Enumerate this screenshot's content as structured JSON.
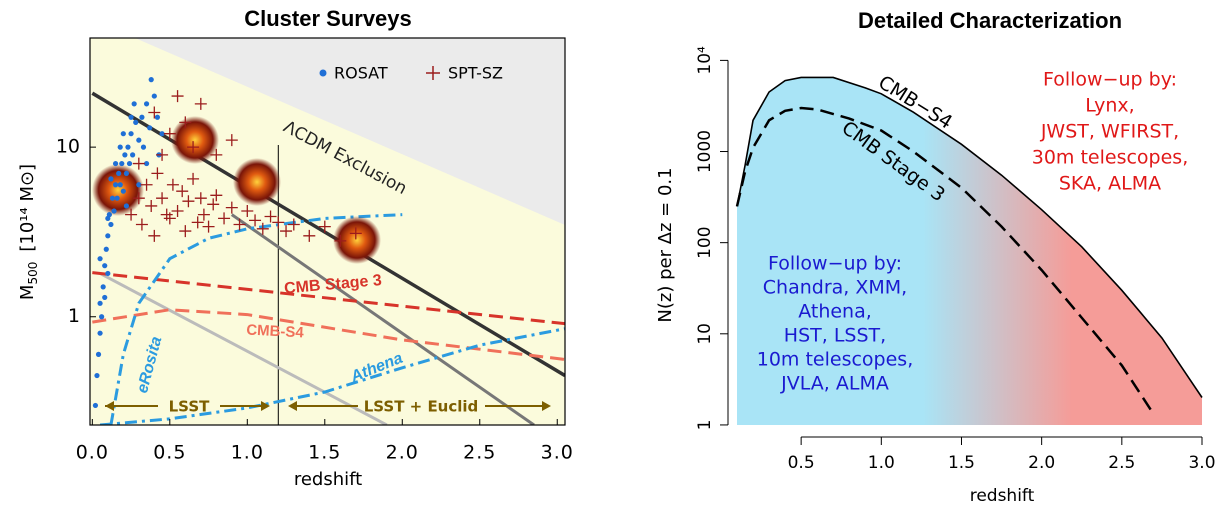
{
  "chart_data": [
    {
      "type": "scatter",
      "title": "Cluster Surveys",
      "x_label": "redshift",
      "y_label": "M",
      "y_label_subscript": "500",
      "y_label_unit": "[10¹⁴ M⊙]",
      "xlim": [
        -0.015,
        3.05
      ],
      "ylim": [
        0.23,
        44
      ],
      "log_y": true,
      "xticks": [
        {
          "value": 0,
          "label": "0.0"
        },
        0.5,
        {
          "value": 1,
          "label": "1.0"
        },
        1.5,
        {
          "value": 2,
          "label": "2.0"
        },
        2.5,
        {
          "value": 3,
          "label": "3.0"
        }
      ],
      "yticks": [
        1,
        10
      ],
      "series": [
        {
          "name": "ROSAT",
          "color": "#1f6fd6",
          "marker": "dot",
          "x": [
            0.02,
            0.03,
            0.04,
            0.05,
            0.05,
            0.06,
            0.07,
            0.08,
            0.08,
            0.09,
            0.1,
            0.1,
            0.11,
            0.12,
            0.13,
            0.14,
            0.15,
            0.16,
            0.17,
            0.18,
            0.19,
            0.2,
            0.21,
            0.22,
            0.23,
            0.24,
            0.25,
            0.26,
            0.28,
            0.3,
            0.32,
            0.33,
            0.35,
            0.37,
            0.4,
            0.42,
            0.45,
            0.05,
            0.1,
            0.15,
            0.2,
            0.25,
            0.3,
            0.12,
            0.18,
            0.22,
            0.27,
            0.35,
            0.38,
            0.43
          ],
          "values": [
            0.3,
            0.45,
            0.6,
            0.8,
            1.2,
            1.0,
            1.5,
            2,
            1.3,
            2.5,
            3,
            1.8,
            4,
            3.5,
            5,
            4.2,
            6,
            5,
            7,
            6,
            8,
            5.5,
            9,
            7,
            10,
            8,
            12,
            9,
            14,
            11,
            15,
            10,
            18,
            13,
            20,
            15,
            12,
            2.2,
            3.8,
            8,
            12,
            15,
            6,
            6.5,
            10,
            4.5,
            18,
            8,
            25,
            9
          ]
        },
        {
          "name": "SPT-SZ",
          "color": "#9b1c1c",
          "marker": "plus",
          "x": [
            0.25,
            0.3,
            0.32,
            0.35,
            0.38,
            0.4,
            0.42,
            0.45,
            0.48,
            0.5,
            0.52,
            0.55,
            0.58,
            0.6,
            0.62,
            0.65,
            0.68,
            0.7,
            0.72,
            0.75,
            0.78,
            0.8,
            0.85,
            0.9,
            0.95,
            1.0,
            1.05,
            1.1,
            1.15,
            1.2,
            1.25,
            1.3,
            1.4,
            1.5,
            1.6,
            1.7,
            0.4,
            0.5,
            0.6,
            0.7,
            0.8,
            0.9,
            0.55,
            0.65,
            0.3,
            0.45
          ],
          "values": [
            4,
            5,
            3.5,
            6,
            4.5,
            3,
            7,
            5,
            4,
            3.8,
            6,
            4.2,
            5.5,
            3.2,
            4.8,
            6.5,
            3.6,
            5,
            4,
            3.4,
            4.6,
            5.2,
            3.8,
            4.4,
            3.5,
            4.2,
            3.7,
            3.3,
            3.9,
            3.6,
            3.2,
            3.5,
            3,
            3.4,
            2.8,
            3.1,
            16,
            12,
            14,
            18,
            9,
            11,
            20,
            10,
            8,
            9
          ]
        }
      ],
      "curves": [
        {
          "color": "#333333",
          "dash": "solid",
          "x": [
            0,
            3.05
          ],
          "values": [
            20.8,
            0.45
          ]
        },
        {
          "color": "#777777",
          "dash": "solid",
          "x": [
            0.9,
            2.85
          ],
          "values": [
            4,
            0.23
          ]
        },
        {
          "color": "#bbbbbb",
          "dash": "solid",
          "x": [
            0.05,
            1.9
          ],
          "values": [
            1.8,
            0.23
          ]
        },
        {
          "label": "CMB Stage 3",
          "color": "#d7342a",
          "dash": "dashed",
          "x": [
            0,
            3.05
          ],
          "values": [
            1.82,
            0.91
          ]
        },
        {
          "label": "CMB-S4",
          "color": "#f0705a",
          "dash": "dashed",
          "x": [
            0,
            0.5,
            1.0,
            2.0,
            3.05
          ],
          "values": [
            0.93,
            1.1,
            1.03,
            0.73,
            0.56
          ]
        },
        {
          "label": "eRosita",
          "color": "#2b9be0",
          "dash": "dashdot",
          "x": [
            0.12,
            0.2,
            0.3,
            0.5,
            0.75,
            1.0,
            1.5,
            2.0
          ],
          "values": [
            0.23,
            0.6,
            1.2,
            2.2,
            2.9,
            3.3,
            3.8,
            4.0
          ]
        },
        {
          "label": "Athena",
          "color": "#2b9be0",
          "dash": "dashdot",
          "x": [
            0.05,
            0.5,
            1.0,
            1.5,
            2.0,
            2.5,
            3.05
          ],
          "values": [
            0.23,
            0.25,
            0.29,
            0.36,
            0.5,
            0.68,
            0.85
          ]
        }
      ],
      "divider_x": 1.2,
      "annotations": [
        {
          "text": "ΛCDM Exclusion"
        },
        {
          "text": "LSST"
        },
        {
          "text": "LSST + Euclid"
        }
      ]
    },
    {
      "type": "line",
      "title": "Detailed Characterization",
      "x_label": "redshift",
      "y_label": "N(z) per Δz = 0.1",
      "xlim": [
        0.1,
        3.0
      ],
      "ylim": [
        0.88,
        13000
      ],
      "log_y": true,
      "xticks": [
        0.5,
        {
          "value": 1,
          "label": "1.0"
        },
        1.5,
        {
          "value": 2,
          "label": "2.0"
        },
        2.5,
        {
          "value": 3,
          "label": "3.0"
        }
      ],
      "yticks": [
        1,
        10,
        100,
        1000,
        {
          "value": 10000,
          "label": "10⁴"
        }
      ],
      "fill_colors": [
        "#a9e4f6",
        "#f59c98"
      ],
      "series": [
        {
          "name": "CMB−S4",
          "color": "#000000",
          "dash": "solid",
          "x": [
            0.1,
            0.15,
            0.2,
            0.3,
            0.4,
            0.5,
            0.7,
            0.9,
            1.0,
            1.2,
            1.5,
            1.75,
            2.0,
            2.25,
            2.5,
            2.75,
            3.0
          ],
          "values": [
            250,
            700,
            2200,
            4500,
            6000,
            6500,
            6500,
            5000,
            4300,
            2700,
            1200,
            550,
            230,
            90,
            30,
            9,
            2
          ]
        },
        {
          "name": "CMB Stage 3",
          "color": "#000000",
          "dash": "dashed",
          "x": [
            0.1,
            0.15,
            0.2,
            0.3,
            0.4,
            0.5,
            0.6,
            0.8,
            1.0,
            1.2,
            1.5,
            1.75,
            2.0,
            2.25,
            2.5,
            2.7
          ],
          "values": [
            250,
            600,
            1100,
            2200,
            2800,
            3000,
            2900,
            2300,
            1700,
            1000,
            400,
            150,
            50,
            15,
            4.5,
            1.3
          ]
        }
      ],
      "annotations": [
        {
          "color": "#1a1ad0",
          "lines": [
            "Follow−up by:",
            "Chandra, XMM,",
            "Athena,",
            "HST, LSST,",
            "10m telescopes,",
            "JVLA, ALMA"
          ]
        },
        {
          "color": "#e01818",
          "lines": [
            "Follow−up by:",
            "Lynx,",
            "JWST, WFIRST,",
            "30m telescopes,",
            "SKA, ALMA"
          ]
        }
      ]
    }
  ]
}
